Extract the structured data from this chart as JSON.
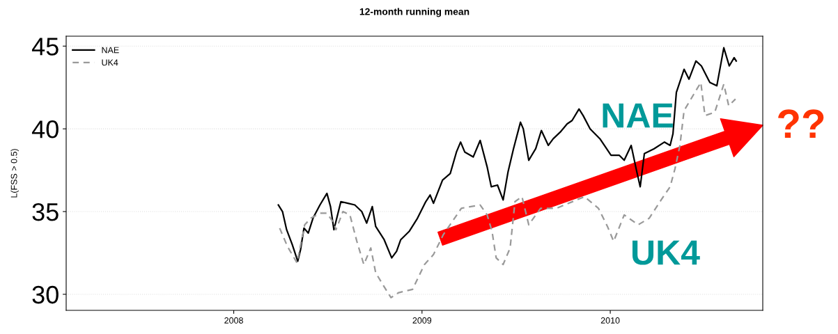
{
  "chart_data": {
    "type": "line",
    "title": "12-month running mean",
    "ylabel": "L(FSS > 0.5)",
    "xlim": [
      2007.11,
      2010.81
    ],
    "xticks": [
      2008,
      2009,
      2010
    ],
    "ylim": [
      29.03,
      45.6
    ],
    "yticks": [
      30,
      35,
      40,
      45
    ],
    "grid": "y",
    "legend": "top left",
    "marker": "none",
    "annotations": [
      "NAE",
      "UK4",
      "??"
    ],
    "series": [
      {
        "name": "NAE",
        "color": "#000000",
        "line_style": "solid",
        "x": [
          2008.237,
          2008.259,
          2008.281,
          2008.311,
          2008.34,
          2008.355,
          2008.373,
          2008.396,
          2008.421,
          2008.458,
          2008.495,
          2008.514,
          2008.532,
          2008.569,
          2008.606,
          2008.643,
          2008.68,
          2008.706,
          2008.736,
          2008.754,
          2008.799,
          2008.839,
          2008.865,
          2008.887,
          2008.932,
          2008.976,
          2009.02,
          2009.043,
          2009.061,
          2009.109,
          2009.15,
          2009.183,
          2009.205,
          2009.227,
          2009.272,
          2009.309,
          2009.346,
          2009.368,
          2009.401,
          2009.431,
          2009.457,
          2009.486,
          2009.523,
          2009.538,
          2009.567,
          2009.604,
          2009.634,
          2009.671,
          2009.697,
          2009.734,
          2009.771,
          2009.797,
          2009.834,
          2009.856,
          2009.893,
          2009.945,
          2010.004,
          2010.048,
          2010.074,
          2010.111,
          2010.141,
          2010.159,
          2010.181,
          2010.233,
          2010.288,
          2010.318,
          2010.333,
          2010.351,
          2010.392,
          2010.418,
          2010.455,
          2010.484,
          2010.529,
          2010.566,
          2010.603,
          2010.632,
          2010.658,
          2010.669
        ],
        "values": [
          35.4,
          35.0,
          33.9,
          33.0,
          32.0,
          32.7,
          34.0,
          33.7,
          34.6,
          35.4,
          36.1,
          35.3,
          33.9,
          35.6,
          35.5,
          35.4,
          35.0,
          34.3,
          35.3,
          34.1,
          33.3,
          32.2,
          32.6,
          33.3,
          33.8,
          34.6,
          35.6,
          36.0,
          35.5,
          36.9,
          37.3,
          38.6,
          39.2,
          38.6,
          38.3,
          39.3,
          37.7,
          36.5,
          36.6,
          35.7,
          37.4,
          38.8,
          40.4,
          40.0,
          38.1,
          38.8,
          39.9,
          39.0,
          39.4,
          39.8,
          40.3,
          40.5,
          41.2,
          40.8,
          40.0,
          39.4,
          38.4,
          38.4,
          38.1,
          39.0,
          37.4,
          36.5,
          38.5,
          38.8,
          39.2,
          39.0,
          39.7,
          42.2,
          43.6,
          43.0,
          44.1,
          43.8,
          42.8,
          42.6,
          44.9,
          43.8,
          44.3,
          44.1
        ]
      },
      {
        "name": "UK4",
        "color": "#999999",
        "line_style": "dashed",
        "x": [
          2008.244,
          2008.285,
          2008.336,
          2008.377,
          2008.41,
          2008.458,
          2008.495,
          2008.532,
          2008.543,
          2008.58,
          2008.617,
          2008.654,
          2008.691,
          2008.728,
          2008.754,
          2008.802,
          2008.835,
          2008.876,
          2008.95,
          2009.013,
          2009.061,
          2009.113,
          2009.209,
          2009.309,
          2009.346,
          2009.372,
          2009.394,
          2009.431,
          2009.468,
          2009.494,
          2009.531,
          2009.567,
          2009.63,
          2009.715,
          2009.863,
          2009.937,
          2009.985,
          2010.018,
          2010.074,
          2010.148,
          2010.207,
          2010.27,
          2010.318,
          2010.344,
          2010.37,
          2010.392,
          2010.444,
          2010.481,
          2010.503,
          2010.555,
          2010.603,
          2010.629,
          2010.665
        ],
        "values": [
          34.0,
          32.9,
          31.9,
          34.2,
          34.6,
          34.9,
          34.9,
          34.3,
          33.9,
          35.0,
          34.8,
          33.2,
          31.8,
          32.8,
          31.3,
          30.4,
          29.8,
          30.1,
          30.3,
          31.8,
          32.4,
          33.6,
          35.2,
          35.4,
          34.8,
          33.8,
          32.2,
          31.8,
          32.8,
          35.6,
          35.9,
          34.2,
          35.2,
          35.2,
          35.9,
          35.2,
          34.1,
          33.2,
          34.8,
          34.2,
          34.6,
          35.7,
          36.5,
          37.6,
          39.0,
          41.1,
          42.1,
          42.8,
          40.8,
          41.0,
          42.7,
          41.4,
          41.8
        ]
      }
    ]
  }
}
